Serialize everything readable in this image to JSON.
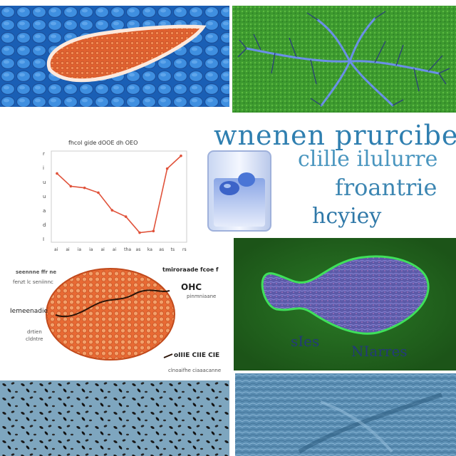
{
  "headline": {
    "line1": "wnenen prurcibe",
    "line2": "clille ilulurre",
    "line3": "froantrie",
    "line4": "hcyiey"
  },
  "chart_panel": {
    "title": "fhcol gide dOOE dh OEO",
    "y_ticks": [
      "r",
      "i",
      "u",
      "u",
      "a",
      "d",
      "I"
    ],
    "x_ticks": [
      "ai",
      "ai",
      "ia",
      "ia",
      "ai",
      "ai",
      "tha",
      "as",
      "ka",
      "as",
      "ts",
      "rs"
    ],
    "color": "#e0523a"
  },
  "chart_data": {
    "type": "line",
    "title": "fhcol gide dOOE dh OEO",
    "x": [
      1,
      2,
      3,
      4,
      5,
      6,
      7,
      8,
      9,
      10
    ],
    "series": [
      {
        "values": [
          5.8,
          5.0,
          4.9,
          4.6,
          3.5,
          3.1,
          2.1,
          2.2,
          6.1,
          6.9
        ]
      }
    ],
    "ylim": [
      1.5,
      7.2
    ]
  },
  "cell_panel": {
    "left_label_1": "seennne ffr ne",
    "left_label_2": "fenzt lc seniinnc",
    "left_label_3": "Iemeenadie",
    "left_label_4": "drtien",
    "left_label_5": "cldntre",
    "right_label_1": "tmiroraade fcoe f",
    "right_label_2": "OHC",
    "right_label_3": "pinmniaane",
    "bottom_label_1": "oIIIE CIIE CIE",
    "bottom_label_2": "clnoaifhe ciaaacanne"
  },
  "fish_panel": {
    "caption_left": "sIes",
    "caption_right": "NIarres"
  },
  "colors": {
    "cell_blue": "#1f6fc4",
    "leaf_green": "#3a9a2e",
    "dark_green": "#1f5d1c",
    "orange": "#e0622f",
    "tissue_blue": "#5b8fb0"
  }
}
